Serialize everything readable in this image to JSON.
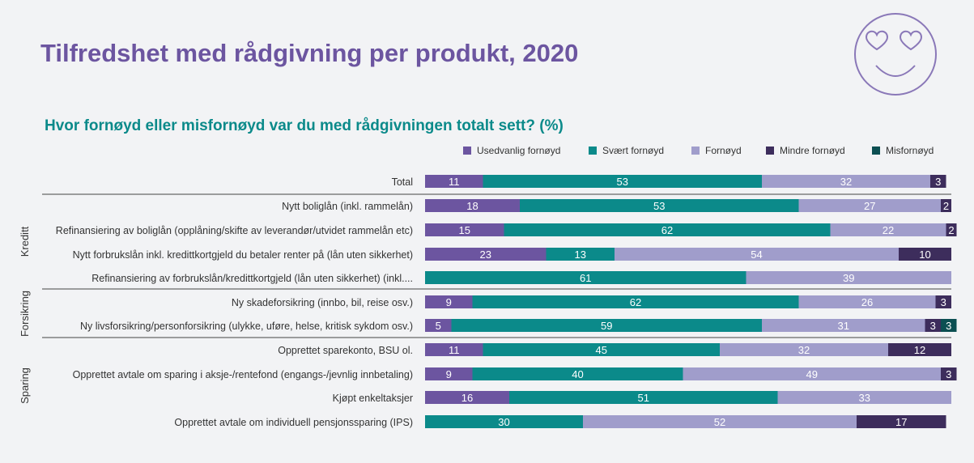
{
  "title": "Tilfredshet med rådgivning per produkt, 2020",
  "subtitle": "Hvor fornøyd eller misfornøyd var du med rådgivningen totalt sett? (%)",
  "colors": {
    "title": "#6c55a0",
    "subtitle": "#0b8a8a",
    "series": [
      "#6c55a0",
      "#0b8a8a",
      "#a09dcb",
      "#3d2d5c",
      "#0c4f52"
    ]
  },
  "chart_data": {
    "type": "bar",
    "orientation": "horizontal",
    "stacked": true,
    "title": "Hvor fornøyd eller misfornøyd var du med rådgivningen totalt sett? (%)",
    "xlim": [
      0,
      100
    ],
    "legend_position": "top-right",
    "series": [
      {
        "name": "Usedvanlig fornøyd",
        "values": [
          11,
          18,
          15,
          23,
          0,
          9,
          5,
          11,
          9,
          16,
          0
        ]
      },
      {
        "name": "Svært fornøyd",
        "values": [
          53,
          53,
          62,
          13,
          61,
          62,
          59,
          45,
          40,
          51,
          30
        ]
      },
      {
        "name": "Fornøyd",
        "values": [
          32,
          27,
          22,
          54,
          39,
          26,
          31,
          32,
          49,
          33,
          52
        ]
      },
      {
        "name": "Mindre fornøyd",
        "values": [
          3,
          2,
          2,
          10,
          0,
          3,
          3,
          12,
          3,
          0,
          17
        ]
      },
      {
        "name": "Misfornøyd",
        "values": [
          0,
          0,
          0,
          0,
          0,
          0,
          3,
          0,
          0,
          0,
          0
        ]
      }
    ],
    "categories": [
      "Total",
      "Nytt boliglån (inkl. rammelån)",
      "Refinansiering av boliglån (opplåning/skifte av leverandør/utvidet rammelån  etc)",
      "Nytt forbrukslån inkl. kredittkortgjeld du betaler renter på  (lån uten sikkerhet)",
      "Refinansiering av forbrukslån/kredittkortgjeld (lån uten sikkerhet) (inkl....",
      "Ny skadeforsikring (innbo, bil, reise osv.)",
      "Ny livsforsikring/personforsikring (ulykke, uføre, helse, kritisk sykdom osv.)",
      "Opprettet sparekonto, BSU ol.",
      "Opprettet avtale om sparing i aksje-/rentefond (engangs-/jevnlig innbetaling)",
      "Kjøpt enkeltaksjer",
      "Opprettet avtale om individuell pensjonssparing (IPS)"
    ],
    "groups": [
      {
        "label": "Kreditt",
        "rows": [
          1,
          4
        ]
      },
      {
        "label": "Forsikring",
        "rows": [
          5,
          6
        ]
      },
      {
        "label": "Sparing",
        "rows": [
          7,
          10
        ]
      }
    ]
  }
}
